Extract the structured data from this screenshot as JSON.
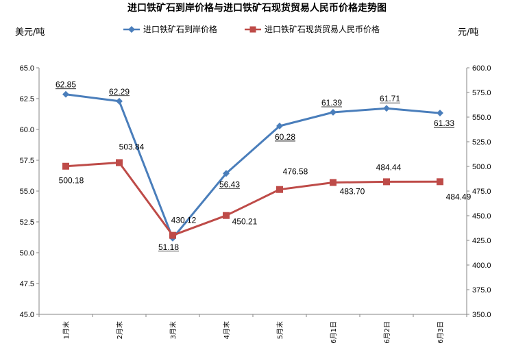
{
  "chart_data": {
    "type": "line",
    "title": "进口铁矿石到岸价格与进口铁矿石现货贸易人民币价格走势图",
    "left_unit": "美元/吨",
    "right_unit": "元/吨",
    "categories": [
      "1月末",
      "2月末",
      "3月末",
      "4月末",
      "5月末",
      "6月1日",
      "6月2日",
      "6月3日"
    ],
    "y_left": {
      "min": 45.0,
      "max": 65.0,
      "step": 2.5
    },
    "y_right": {
      "min": 350.0,
      "max": 600.0,
      "step": 25.0
    },
    "grid": false,
    "legend_position": "top",
    "series": [
      {
        "name": "进口铁矿石到岸价格",
        "axis": "left",
        "color": "#4a7ebb",
        "marker": "diamond",
        "values": [
          62.85,
          62.29,
          51.18,
          56.43,
          60.28,
          61.39,
          61.71,
          61.33
        ],
        "labels": [
          "62.85",
          "62.29",
          "51.18",
          "56.43",
          "60.28",
          "61.39",
          "61.71",
          "61.33"
        ]
      },
      {
        "name": "进口铁矿石现货贸易人民币价格",
        "axis": "right",
        "color": "#be4b48",
        "marker": "square",
        "values": [
          500.18,
          503.84,
          430.12,
          450.21,
          476.58,
          483.7,
          484.44,
          484.49
        ],
        "labels": [
          "500.18",
          "503.84",
          "430.12",
          "450.21",
          "476.58",
          "483.70",
          "484.44",
          "484.49"
        ]
      }
    ]
  }
}
